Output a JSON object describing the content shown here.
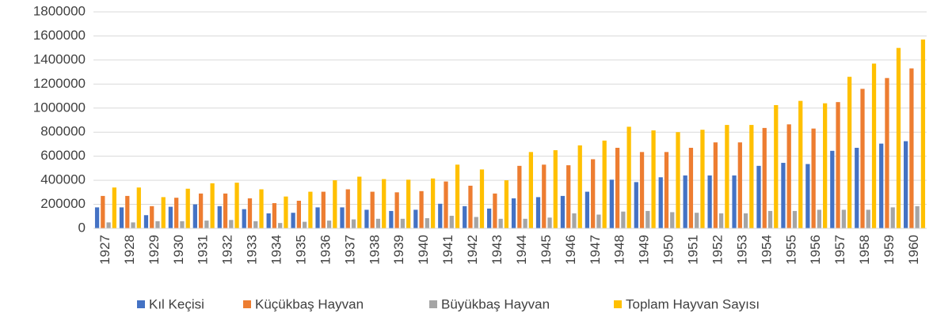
{
  "chart_data": {
    "type": "bar",
    "categories": [
      "1927",
      "1928",
      "1929",
      "1930",
      "1931",
      "1932",
      "1933",
      "1934",
      "1935",
      "1936",
      "1937",
      "1938",
      "1939",
      "1940",
      "1941",
      "1942",
      "1943",
      "1944",
      "1945",
      "1946",
      "1947",
      "1948",
      "1949",
      "1950",
      "1951",
      "1952",
      "1953",
      "1954",
      "1955",
      "1956",
      "1957",
      "1958",
      "1959",
      "1960"
    ],
    "series": [
      {
        "name": "Kıl Keçisi",
        "color": "#4472c4",
        "values": [
          175000,
          175000,
          110000,
          180000,
          200000,
          185000,
          160000,
          125000,
          130000,
          175000,
          175000,
          155000,
          145000,
          155000,
          205000,
          185000,
          165000,
          250000,
          260000,
          270000,
          305000,
          405000,
          385000,
          425000,
          440000,
          440000,
          440000,
          520000,
          545000,
          535000,
          645000,
          670000,
          705000,
          725000
        ]
      },
      {
        "name": "Küçükbaş Hayvan",
        "color": "#ed7d31",
        "values": [
          270000,
          270000,
          185000,
          255000,
          290000,
          290000,
          250000,
          210000,
          230000,
          305000,
          325000,
          305000,
          300000,
          310000,
          390000,
          355000,
          290000,
          520000,
          530000,
          525000,
          575000,
          670000,
          635000,
          635000,
          670000,
          715000,
          715000,
          835000,
          865000,
          830000,
          1050000,
          1160000,
          1250000,
          1330000
        ]
      },
      {
        "name": "Büyükbaş Hayvan",
        "color": "#a5a5a5",
        "values": [
          50000,
          50000,
          60000,
          60000,
          65000,
          70000,
          60000,
          45000,
          55000,
          65000,
          75000,
          80000,
          80000,
          85000,
          105000,
          95000,
          80000,
          80000,
          90000,
          125000,
          115000,
          140000,
          145000,
          135000,
          130000,
          125000,
          125000,
          145000,
          145000,
          155000,
          155000,
          155000,
          175000,
          185000
        ]
      },
      {
        "name": "Toplam Hayvan Sayısı",
        "color": "#ffc000",
        "values": [
          340000,
          340000,
          260000,
          330000,
          375000,
          380000,
          325000,
          265000,
          305000,
          400000,
          430000,
          410000,
          405000,
          415000,
          530000,
          490000,
          400000,
          635000,
          650000,
          690000,
          730000,
          845000,
          815000,
          800000,
          820000,
          860000,
          860000,
          1025000,
          1060000,
          1040000,
          1260000,
          1370000,
          1500000,
          1570000
        ]
      }
    ],
    "ylim": [
      0,
      1800000
    ],
    "yticks": [
      0,
      200000,
      400000,
      600000,
      800000,
      1000000,
      1200000,
      1400000,
      1600000,
      1800000
    ],
    "grid": true,
    "legend": "bottom"
  }
}
